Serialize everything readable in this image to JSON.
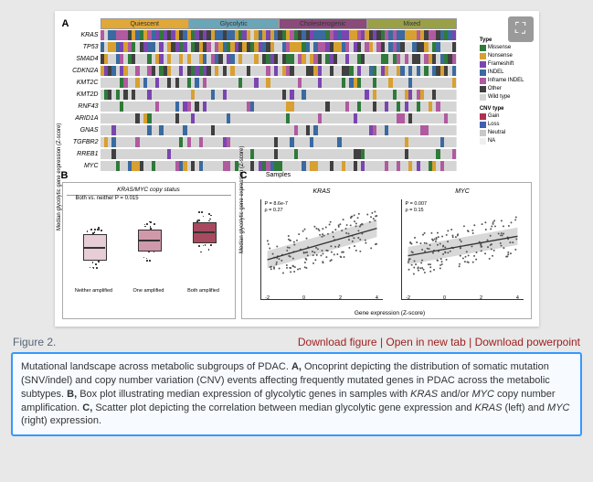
{
  "figure_number": "Figure 2.",
  "links": {
    "download_figure": "Download figure",
    "open_new_tab": "Open in new tab",
    "download_ppt": "Download powerpoint"
  },
  "caption": {
    "lead": "Mutational landscape across metabolic subgroups of PDAC.",
    "a": "Oncoprint depicting the distribution of somatic mutation (SNV/indel) and copy number variation (CNV) events affecting frequently mutated genes in PDAC across the metabolic subtypes.",
    "b_pre": "Box plot illustrating median expression of glycolytic genes in samples with ",
    "b_genes": "KRAS",
    "b_mid": " and/or ",
    "b_genes2": "MYC",
    "b_post": " copy number amplification.",
    "c_pre": "Scatter plot depicting the correlation between median glycolytic gene expression and ",
    "c_gene1": "KRAS",
    "c_mid": " (left) and ",
    "c_gene2": "MYC",
    "c_post": " (right) expression."
  },
  "panel_a": {
    "label": "A",
    "subtypes": [
      {
        "name": "Quiescent",
        "color": "#e0a838"
      },
      {
        "name": "Glycolytic",
        "color": "#6aa5b8"
      },
      {
        "name": "Cholesterogenic",
        "color": "#8a4a7a"
      },
      {
        "name": "Mixed",
        "color": "#9aa048"
      }
    ],
    "genes": [
      "KRAS",
      "TP53",
      "SMAD4",
      "CDKN2A",
      "KMT2C",
      "KMT2D",
      "RNF43",
      "ARID1A",
      "GNAS",
      "TGFBR2",
      "RREB1",
      "MYC"
    ],
    "mut_legend_title": "Type",
    "mut_legend": [
      {
        "label": "Missense",
        "color": "#2f7a3a"
      },
      {
        "label": "Nonsense",
        "color": "#d8a030"
      },
      {
        "label": "Frameshift",
        "color": "#7a45b0"
      },
      {
        "label": "INDEL",
        "color": "#3a6aa0"
      },
      {
        "label": "Inframe INDEL",
        "color": "#b05aa0"
      },
      {
        "label": "Other",
        "color": "#404040"
      },
      {
        "label": "Wild type",
        "color": "#d5d5d5"
      }
    ],
    "cnv_legend_title": "CNV type",
    "cnv_legend": [
      {
        "label": "Gain",
        "color": "#b03050"
      },
      {
        "label": "Loss",
        "color": "#4060b0"
      },
      {
        "label": "Neutral",
        "color": "#c8c8c8"
      },
      {
        "label": "NA",
        "color": "#efefef"
      }
    ],
    "samples_label": "Samples",
    "n_samples": 90,
    "density": [
      0.95,
      0.82,
      0.55,
      0.5,
      0.28,
      0.22,
      0.18,
      0.14,
      0.12,
      0.1,
      0.08,
      0.3
    ]
  },
  "panel_b": {
    "label": "B",
    "title": "KRAS/MYC copy status",
    "pvalue_text": "Both vs. neither P = 0.015",
    "ylabel": "Median glycolytic gene expression (Z-score)",
    "ylim": [
      -1.5,
      1.5
    ],
    "categories": [
      "Neither amplified",
      "One amplified",
      "Both amplified"
    ],
    "boxes": [
      {
        "q1": -0.55,
        "median": -0.15,
        "q3": 0.3,
        "color": "#e7cdd6"
      },
      {
        "q1": -0.25,
        "median": 0.1,
        "q3": 0.45,
        "color": "#cf99aa"
      },
      {
        "q1": 0.05,
        "median": 0.4,
        "q3": 0.7,
        "color": "#a84a5f"
      }
    ]
  },
  "panel_c": {
    "label": "C",
    "ylabel": "Median glycolytic gene expression (Z-score)",
    "xlabel": "Gene expression (Z-score)",
    "xlim": [
      -2,
      4
    ],
    "ylim": [
      -2,
      2
    ],
    "xtick_step": 2,
    "left": {
      "title": "KRAS",
      "p_text": "P = 8.6e-7",
      "rho_text": "ρ = 0.27",
      "trend": {
        "slope": 0.21,
        "intercept": 0.0
      },
      "n_points": 160
    },
    "right": {
      "title": "MYC",
      "p_text": "P = 0.007",
      "rho_text": "ρ = 0.15",
      "trend": {
        "slope": 0.13,
        "intercept": 0.0
      },
      "n_points": 160
    },
    "point_color": "#555555",
    "ci_color": "rgba(100,100,100,0.25)"
  },
  "icons": {
    "expand": "⛶"
  }
}
